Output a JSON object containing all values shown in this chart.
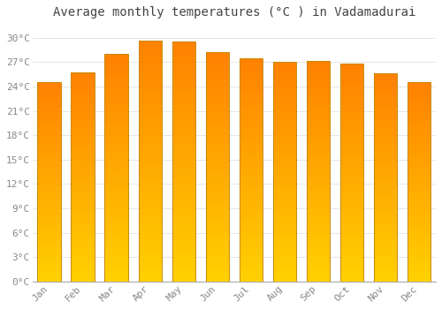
{
  "title": "Average monthly temperatures (°C ) in Vadamadurai",
  "months": [
    "Jan",
    "Feb",
    "Mar",
    "Apr",
    "May",
    "Jun",
    "Jul",
    "Aug",
    "Sep",
    "Oct",
    "Nov",
    "Dec"
  ],
  "temperatures": [
    24.5,
    25.8,
    28.0,
    29.7,
    29.6,
    28.2,
    27.5,
    27.1,
    27.2,
    26.8,
    25.6,
    24.5
  ],
  "bar_color_bottom": "#FFD000",
  "bar_color_top": "#FFA020",
  "bar_edge_color": "#CC8800",
  "background_color": "#FFFFFF",
  "grid_color": "#E0E0E0",
  "yticks": [
    0,
    3,
    6,
    9,
    12,
    15,
    18,
    21,
    24,
    27,
    30
  ],
  "ytick_labels": [
    "0°C",
    "3°C",
    "6°C",
    "9°C",
    "12°C",
    "15°C",
    "18°C",
    "21°C",
    "24°C",
    "27°C",
    "30°C"
  ],
  "ylim": [
    0,
    31.5
  ],
  "title_fontsize": 10,
  "tick_fontsize": 8,
  "tick_color": "#888888",
  "bar_width": 0.7
}
